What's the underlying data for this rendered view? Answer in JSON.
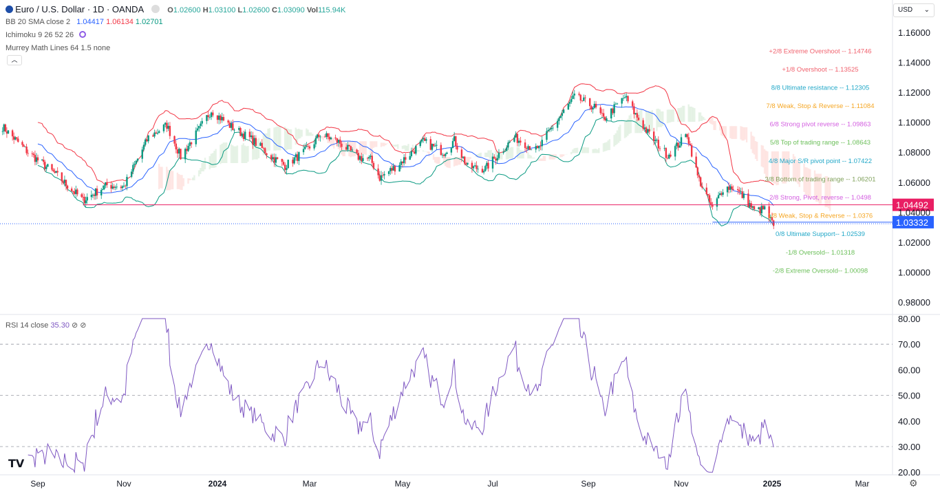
{
  "header": {
    "symbol": "Euro / U.S. Dollar · 1D · OANDA",
    "o_label": "O",
    "o": "1.02600",
    "h_label": "H",
    "h": "1.03100",
    "l_label": "L",
    "l": "1.02600",
    "c_label": "C",
    "c": "1.03090",
    "vol_label": "Vol",
    "vol": "115.94K"
  },
  "indicators": {
    "bb": {
      "label": "BB 20 SMA close 2",
      "basis": "1.04417",
      "upper": "1.06134",
      "lower": "1.02701"
    },
    "ichimoku": {
      "label": "Ichimoku 9 26 52 26"
    },
    "murrey": {
      "label": "Murrey Math Lines 64 1.5 none"
    },
    "rsi": {
      "label": "RSI 14 close",
      "value": "35.30",
      "flags": "⊘ ⊘"
    }
  },
  "currency_select": "USD",
  "colors": {
    "up": "#089981",
    "down": "#f23645",
    "bb_basis": "#2962ff",
    "bb_upper": "#f23645",
    "bb_lower": "#089981",
    "rsi": "#7e57c2",
    "last_price": "#2962ff",
    "hline": "#e91e63"
  },
  "chart_data": [
    {
      "type": "candlestick",
      "title": "Euro / U.S. Dollar · 1D · OANDA",
      "ylim": [
        0.97,
        1.17
      ],
      "y_ticks": [
        "1.16000",
        "1.14000",
        "1.12000",
        "1.10000",
        "1.08000",
        "1.06000",
        "1.04000",
        "1.02000",
        "1.00000",
        "0.98000"
      ],
      "x_ticks": [
        {
          "label": "Sep",
          "date": "2023-09-01"
        },
        {
          "label": "Nov",
          "date": "2023-11-01"
        },
        {
          "label": "2024",
          "date": "2024-01-01",
          "bold": true
        },
        {
          "label": "Mar",
          "date": "2024-03-01"
        },
        {
          "label": "May",
          "date": "2024-05-01"
        },
        {
          "label": "Jul",
          "date": "2024-07-01"
        },
        {
          "label": "Sep",
          "date": "2024-09-01"
        },
        {
          "label": "Nov",
          "date": "2024-11-01"
        },
        {
          "label": "2025",
          "date": "2025-01-01",
          "bold": true
        },
        {
          "label": "Mar",
          "date": "2025-03-01"
        }
      ],
      "approx_closes": [
        [
          "2023-08-07",
          1.097
        ],
        [
          "2023-08-25",
          1.08
        ],
        [
          "2023-09-14",
          1.065
        ],
        [
          "2023-10-03",
          1.048
        ],
        [
          "2023-10-20",
          1.058
        ],
        [
          "2023-11-01",
          1.057
        ],
        [
          "2023-11-17",
          1.09
        ],
        [
          "2023-11-29",
          1.098
        ],
        [
          "2023-12-08",
          1.077
        ],
        [
          "2023-12-18",
          1.092
        ],
        [
          "2023-12-28",
          1.108
        ],
        [
          "2024-01-10",
          1.097
        ],
        [
          "2024-01-24",
          1.088
        ],
        [
          "2024-02-05",
          1.077
        ],
        [
          "2024-02-14",
          1.071
        ],
        [
          "2024-03-01",
          1.083
        ],
        [
          "2024-03-08",
          1.092
        ],
        [
          "2024-03-20",
          1.087
        ],
        [
          "2024-04-01",
          1.077
        ],
        [
          "2024-04-10",
          1.075
        ],
        [
          "2024-04-16",
          1.063
        ],
        [
          "2024-04-26",
          1.07
        ],
        [
          "2024-05-15",
          1.087
        ],
        [
          "2024-05-29",
          1.08
        ],
        [
          "2024-06-05",
          1.088
        ],
        [
          "2024-06-14",
          1.07
        ],
        [
          "2024-06-26",
          1.069
        ],
        [
          "2024-07-15",
          1.09
        ],
        [
          "2024-07-30",
          1.081
        ],
        [
          "2024-08-06",
          1.093
        ],
        [
          "2024-08-23",
          1.117
        ],
        [
          "2024-09-05",
          1.11
        ],
        [
          "2024-09-11",
          1.102
        ],
        [
          "2024-09-25",
          1.117
        ],
        [
          "2024-10-02",
          1.105
        ],
        [
          "2024-10-10",
          1.093
        ],
        [
          "2024-10-23",
          1.078
        ],
        [
          "2024-10-30",
          1.085
        ],
        [
          "2024-11-05",
          1.092
        ],
        [
          "2024-11-12",
          1.064
        ],
        [
          "2024-11-22",
          1.042
        ],
        [
          "2024-11-29",
          1.056
        ],
        [
          "2024-12-06",
          1.057
        ],
        [
          "2024-12-13",
          1.05
        ],
        [
          "2024-12-20",
          1.041
        ],
        [
          "2024-12-27",
          1.042
        ],
        [
          "2025-01-02",
          1.0309
        ]
      ],
      "horizontal_lines": [
        {
          "price": 1.04492,
          "label": "1.04492",
          "color": "#e91e63",
          "from": "2023-10-03"
        },
        {
          "price": 1.03332,
          "label": "1.03332",
          "color": "#2962ff",
          "from": "2024-11-22"
        }
      ],
      "last_close": 1.0309,
      "murrey_levels": [
        {
          "label": "+2/8 Extreme Overshoot --  1.14746",
          "price": 1.14746,
          "color": "#f0616d"
        },
        {
          "label": "+1/8 Overshoot --  1.13525",
          "price": 1.13525,
          "color": "#f0616d"
        },
        {
          "label": "8/8 Ultimate resistance --  1.12305",
          "price": 1.12305,
          "color": "#22a8c8"
        },
        {
          "label": "7/8 Weak, Stop & Reverse --  1.11084",
          "price": 1.11084,
          "color": "#f5a623"
        },
        {
          "label": "6/8 Strong pivot reverse --  1.09863",
          "price": 1.09863,
          "color": "#d35ee0"
        },
        {
          "label": "5/8 Top of trading range --  1.08643",
          "price": 1.08643,
          "color": "#6bbf59"
        },
        {
          "label": "4/8 Major S/R pivot point --  1.07422",
          "price": 1.07422,
          "color": "#22a8c8"
        },
        {
          "label": "3/8 Bottom of trading range --  1.06201",
          "price": 1.06201,
          "color": "#7fa05a"
        },
        {
          "label": "2/8 Strong, Pivot, reverse --  1.0498",
          "price": 1.0498,
          "color": "#d35ee0"
        },
        {
          "label": "1/8 Weak, Stop & Reverse --  1.0376",
          "price": 1.0376,
          "color": "#f5a623"
        },
        {
          "label": "0/8 Ultimate Support--  1.02539",
          "price": 1.02539,
          "color": "#22a8c8"
        },
        {
          "label": "-1/8 Oversold--  1.01318",
          "price": 1.01318,
          "color": "#6bbf59"
        },
        {
          "label": "-2/8 Extreme Oversold--  1.00098",
          "price": 1.00098,
          "color": "#6bbf59"
        }
      ]
    },
    {
      "type": "line",
      "title": "RSI 14 close",
      "ylim": [
        20,
        80
      ],
      "y_ticks": [
        "80.00",
        "70.00",
        "60.00",
        "50.00",
        "40.00",
        "30.00",
        "20.00"
      ],
      "bands": [
        70,
        50,
        30
      ],
      "last": 35.3
    }
  ]
}
